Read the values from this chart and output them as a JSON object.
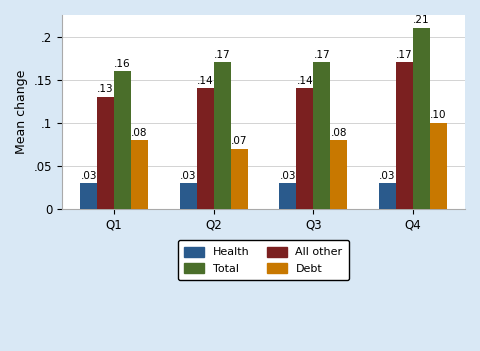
{
  "categories": [
    "Q1",
    "Q2",
    "Q3",
    "Q4"
  ],
  "series": {
    "Health": [
      0.03,
      0.03,
      0.03,
      0.03
    ],
    "All other": [
      0.13,
      0.14,
      0.14,
      0.17
    ],
    "Total": [
      0.16,
      0.17,
      0.17,
      0.21
    ],
    "Debt": [
      0.08,
      0.07,
      0.08,
      0.1
    ]
  },
  "series_order": [
    "Health",
    "All other",
    "Total",
    "Debt"
  ],
  "colors": {
    "Health": "#2a5a8c",
    "All other": "#7b2020",
    "Total": "#4a6e2a",
    "Debt": "#c87800"
  },
  "ylabel": "Mean change",
  "ylim": [
    0,
    0.225
  ],
  "yticks": [
    0,
    0.05,
    0.1,
    0.15,
    0.2
  ],
  "yticklabels": [
    "0",
    ".05",
    ".1",
    ".15",
    ".2"
  ],
  "outer_bg_color": "#d9e8f5",
  "plot_bg_color": "#ffffff",
  "bar_width": 0.17,
  "label_fontsize": 7.5,
  "axis_fontsize": 9,
  "tick_fontsize": 8.5,
  "legend_order": [
    "Health",
    "Total",
    "All other",
    "Debt"
  ]
}
